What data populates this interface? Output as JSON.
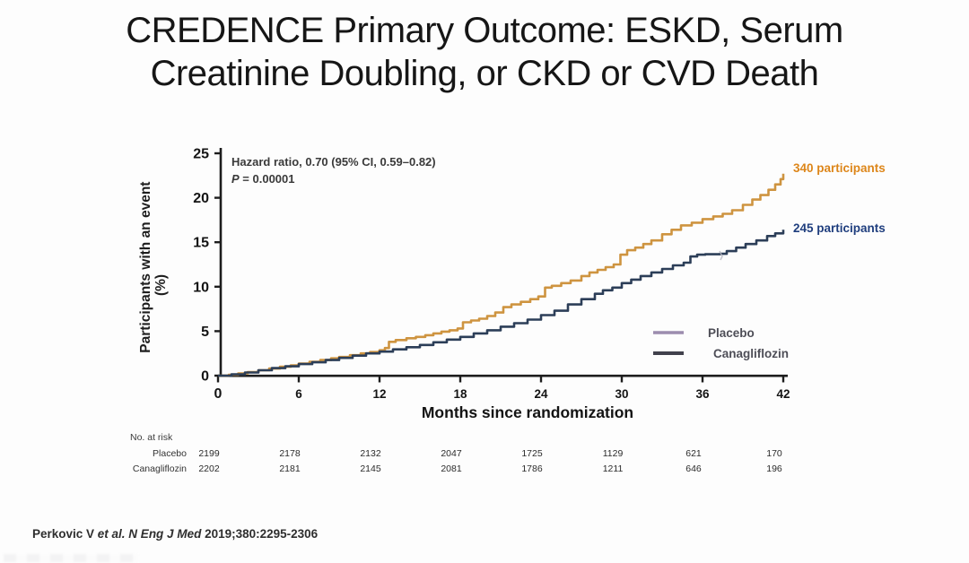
{
  "page": {
    "title_line1": "CREDENCE Primary Outcome: ESKD, Serum",
    "title_line2": "Creatinine Doubling, or CKD or CVD Death",
    "citation": {
      "prefix": "Perkovic V ",
      "italic": "et al. N Eng J Med ",
      "rest": "2019;380:2295-2306"
    }
  },
  "chart_data": {
    "type": "line",
    "subtype": "kaplan-meier cumulative incidence",
    "xlabel": "Months since randomization",
    "ylabel_line1": "Participants with an event",
    "ylabel_line2": "(%)",
    "xlim": [
      0,
      42
    ],
    "ylim": [
      0,
      25
    ],
    "xticks": [
      0,
      6,
      12,
      18,
      24,
      30,
      36,
      42
    ],
    "yticks": [
      0,
      5,
      10,
      15,
      20,
      25
    ],
    "grid": false,
    "legend_position": "inside lower right",
    "annotations": {
      "hazard_line1": "Hazard ratio, 0.70 (95% CI, 0.59–0.82)",
      "hazard_p_symbol": "P",
      "hazard_p_rest": " = 0.00001"
    },
    "colors": {
      "axis": "#1d1d1d",
      "placebo_curve": "#CE9440",
      "placebo_label": "#DD861A",
      "canagliflozin_curve": "#2C3E58",
      "canagliflozin_label": "#1F3E7E",
      "legend_placebo_swatch": "#9C8CAE",
      "legend_canagliflozin_swatch": "#41414C",
      "legend_text": "#4E4E57"
    },
    "legend": [
      {
        "label": "Placebo"
      },
      {
        "label": "Canagliflozin"
      }
    ],
    "series": [
      {
        "name": "Placebo",
        "end_label": "340 participants",
        "points": [
          [
            0,
            0
          ],
          [
            0.8,
            0.1
          ],
          [
            1.5,
            0.25
          ],
          [
            2.2,
            0.4
          ],
          [
            3,
            0.6
          ],
          [
            3.8,
            0.8
          ],
          [
            4.6,
            1.0
          ],
          [
            5.4,
            1.15
          ],
          [
            6,
            1.35
          ],
          [
            6.8,
            1.55
          ],
          [
            7.6,
            1.75
          ],
          [
            8.4,
            1.95
          ],
          [
            9,
            2.1
          ],
          [
            9.8,
            2.3
          ],
          [
            10.6,
            2.5
          ],
          [
            11.3,
            2.65
          ],
          [
            12,
            2.85
          ],
          [
            12.4,
            3.1
          ],
          [
            12.7,
            3.8
          ],
          [
            13.2,
            4.0
          ],
          [
            14,
            4.2
          ],
          [
            14.7,
            4.35
          ],
          [
            15.4,
            4.55
          ],
          [
            16,
            4.75
          ],
          [
            16.6,
            4.95
          ],
          [
            17.2,
            5.1
          ],
          [
            17.8,
            5.3
          ],
          [
            18.2,
            6.0
          ],
          [
            18.8,
            6.2
          ],
          [
            19.4,
            6.4
          ],
          [
            20,
            6.7
          ],
          [
            20.6,
            7.1
          ],
          [
            21.2,
            7.7
          ],
          [
            21.8,
            8.0
          ],
          [
            22.5,
            8.3
          ],
          [
            23.2,
            8.6
          ],
          [
            23.8,
            8.9
          ],
          [
            24.3,
            9.9
          ],
          [
            24.8,
            10.1
          ],
          [
            25.5,
            10.4
          ],
          [
            26.2,
            10.7
          ],
          [
            27,
            11.2
          ],
          [
            27.6,
            11.6
          ],
          [
            28.2,
            11.9
          ],
          [
            28.8,
            12.2
          ],
          [
            29.4,
            12.5
          ],
          [
            29.9,
            13.6
          ],
          [
            30.4,
            14.1
          ],
          [
            31,
            14.4
          ],
          [
            31.6,
            14.8
          ],
          [
            32.2,
            15.2
          ],
          [
            33,
            15.9
          ],
          [
            33.7,
            16.4
          ],
          [
            34.4,
            16.9
          ],
          [
            35.2,
            17.2
          ],
          [
            36,
            17.6
          ],
          [
            36.8,
            17.9
          ],
          [
            37.5,
            18.2
          ],
          [
            38.2,
            18.6
          ],
          [
            39,
            19.2
          ],
          [
            39.7,
            19.8
          ],
          [
            40.3,
            20.3
          ],
          [
            40.9,
            20.9
          ],
          [
            41.4,
            21.5
          ],
          [
            41.8,
            22.1
          ],
          [
            42,
            22.7
          ]
        ]
      },
      {
        "name": "Canagliflozin",
        "end_label": "245 participants",
        "points": [
          [
            0,
            0
          ],
          [
            1,
            0.15
          ],
          [
            2,
            0.35
          ],
          [
            3,
            0.6
          ],
          [
            4,
            0.85
          ],
          [
            5,
            1.05
          ],
          [
            6,
            1.3
          ],
          [
            7,
            1.5
          ],
          [
            8,
            1.75
          ],
          [
            9,
            2.0
          ],
          [
            10,
            2.25
          ],
          [
            11,
            2.5
          ],
          [
            12,
            2.7
          ],
          [
            13,
            2.95
          ],
          [
            14,
            3.2
          ],
          [
            15,
            3.45
          ],
          [
            16,
            3.75
          ],
          [
            17,
            4.05
          ],
          [
            18,
            4.35
          ],
          [
            19,
            4.75
          ],
          [
            20,
            5.1
          ],
          [
            21,
            5.5
          ],
          [
            22,
            5.9
          ],
          [
            23,
            6.3
          ],
          [
            24,
            6.8
          ],
          [
            25,
            7.3
          ],
          [
            26,
            8.0
          ],
          [
            27,
            8.6
          ],
          [
            28,
            9.2
          ],
          [
            28.6,
            9.6
          ],
          [
            29.3,
            9.9
          ],
          [
            30,
            10.4
          ],
          [
            30.7,
            10.8
          ],
          [
            31.4,
            11.2
          ],
          [
            32.2,
            11.6
          ],
          [
            33,
            12.0
          ],
          [
            33.8,
            12.4
          ],
          [
            34.6,
            12.7
          ],
          [
            35.1,
            13.4
          ],
          [
            35.6,
            13.6
          ],
          [
            36.2,
            13.65
          ],
          [
            37.3,
            13.7
          ],
          [
            37.8,
            14.0
          ],
          [
            38.5,
            14.4
          ],
          [
            39.2,
            14.8
          ],
          [
            40,
            15.2
          ],
          [
            40.8,
            15.7
          ],
          [
            41.4,
            16.0
          ],
          [
            42,
            16.4
          ]
        ]
      }
    ],
    "at_risk": {
      "title": "No. at risk",
      "months": [
        0,
        6,
        12,
        18,
        24,
        30,
        36,
        42
      ],
      "rows": [
        {
          "label": "Placebo",
          "values": [
            "2199",
            "2178",
            "2132",
            "2047",
            "1725",
            "1129",
            "621",
            "170"
          ]
        },
        {
          "label": "Canagliflozin",
          "values": [
            "2202",
            "2181",
            "2145",
            "2081",
            "1786",
            "1211",
            "646",
            "196"
          ]
        }
      ]
    }
  }
}
